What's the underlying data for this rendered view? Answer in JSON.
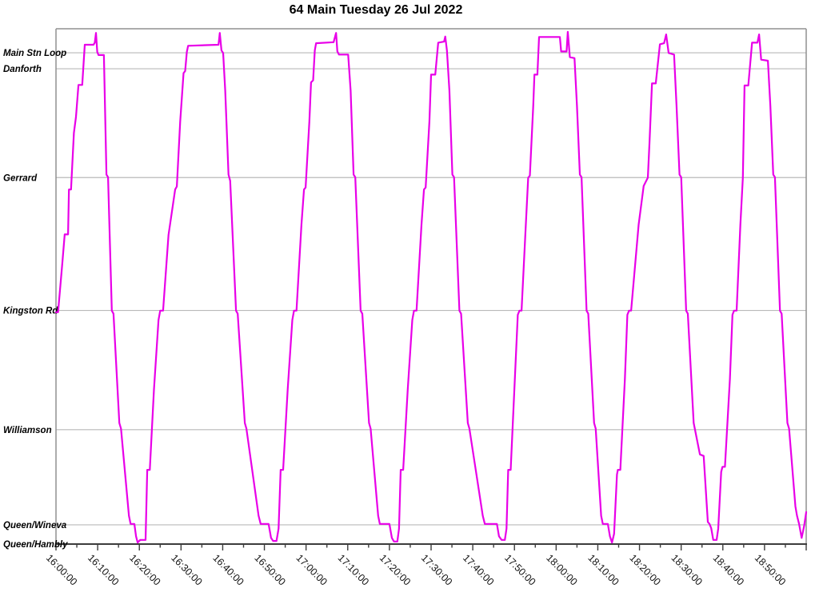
{
  "page": {
    "title": "64 Main Tuesday 26 Jul 2022"
  },
  "chart_data": {
    "type": "line",
    "title": "64 Main Tuesday 26 Jul 2022",
    "description": "Transit time-distance string chart: single vehicle trajectory shuttling along route 64 Main between Queen/Hambly and Main Stn Loop",
    "x_axis": {
      "start_minutes": 0,
      "end_minutes": 180,
      "minor_tick_minutes": 5,
      "major_tick_minutes": 10,
      "tick_labels": [
        "16:00:00",
        "16:10:00",
        "16:20:00",
        "16:30:00",
        "16:40:00",
        "16:50:00",
        "17:00:00",
        "17:10:00",
        "17:20:00",
        "17:30:00",
        "17:40:00",
        "17:50:00",
        "18:00:00",
        "18:10:00",
        "18:20:00",
        "18:30:00",
        "18:40:00",
        "18:50:00"
      ]
    },
    "y_axis": {
      "unit": "normalized route position (0 = Queen/Hambly, 1 = chart top)",
      "grid": true,
      "stops": [
        {
          "label": "Main Stn Loop",
          "pos": 0.9534
        },
        {
          "label": "Danforth",
          "pos": 0.9224
        },
        {
          "label": "Gerrard",
          "pos": 0.7112
        },
        {
          "label": "Kingston Rd",
          "pos": 0.4534
        },
        {
          "label": "Williamson",
          "pos": 0.222
        },
        {
          "label": "Queen/Wineva",
          "pos": 0.0373
        },
        {
          "label": "Queen/Hambly",
          "pos": 0.0
        }
      ]
    },
    "colors": {
      "line": "#E800E8",
      "grid": "#b9b9b9",
      "frame": "#909090",
      "axis": "#3c3c3c",
      "text": "#000000"
    },
    "legend": {
      "visible": false
    },
    "series": [
      {
        "name": "64 Main vehicle trajectory",
        "color": "#E800E8",
        "points": [
          [
            0,
            0.45
          ],
          [
            0.5,
            0.45
          ],
          [
            1.5,
            0.543
          ],
          [
            2.1,
            0.601
          ],
          [
            2.9,
            0.601
          ],
          [
            3.1,
            0.688
          ],
          [
            3.6,
            0.688
          ],
          [
            4.3,
            0.798
          ],
          [
            4.8,
            0.829
          ],
          [
            5.4,
            0.891
          ],
          [
            6.3,
            0.891
          ],
          [
            6.9,
            0.969
          ],
          [
            9.0,
            0.969
          ],
          [
            9.3,
            0.973
          ],
          [
            9.6,
            0.992
          ],
          [
            9.9,
            0.955
          ],
          [
            10.2,
            0.949
          ],
          [
            11.5,
            0.949
          ],
          [
            12.1,
            0.717
          ],
          [
            12.5,
            0.712
          ],
          [
            13.4,
            0.453
          ],
          [
            13.8,
            0.447
          ],
          [
            15.2,
            0.235
          ],
          [
            15.6,
            0.224
          ],
          [
            17.5,
            0.055
          ],
          [
            17.9,
            0.039
          ],
          [
            18.8,
            0.039
          ],
          [
            19.2,
            0.015
          ],
          [
            19.6,
            0.003
          ],
          [
            20.2,
            0.008
          ],
          [
            21.5,
            0.008
          ],
          [
            21.9,
            0.144
          ],
          [
            22.5,
            0.144
          ],
          [
            23.5,
            0.3
          ],
          [
            24.6,
            0.435
          ],
          [
            25.0,
            0.453
          ],
          [
            25.7,
            0.453
          ],
          [
            27.0,
            0.6
          ],
          [
            28.6,
            0.688
          ],
          [
            29.0,
            0.694
          ],
          [
            29.8,
            0.82
          ],
          [
            30.6,
            0.914
          ],
          [
            31.0,
            0.918
          ],
          [
            31.4,
            0.955
          ],
          [
            31.7,
            0.967
          ],
          [
            39.0,
            0.969
          ],
          [
            39.3,
            0.992
          ],
          [
            39.7,
            0.958
          ],
          [
            40.1,
            0.953
          ],
          [
            40.6,
            0.88
          ],
          [
            41.4,
            0.717
          ],
          [
            41.8,
            0.705
          ],
          [
            43.2,
            0.453
          ],
          [
            43.6,
            0.447
          ],
          [
            45.3,
            0.235
          ],
          [
            45.7,
            0.224
          ],
          [
            48.6,
            0.055
          ],
          [
            49.1,
            0.039
          ],
          [
            51.0,
            0.039
          ],
          [
            51.6,
            0.012
          ],
          [
            52.1,
            0.006
          ],
          [
            52.9,
            0.006
          ],
          [
            53.4,
            0.03
          ],
          [
            53.9,
            0.144
          ],
          [
            54.5,
            0.144
          ],
          [
            55.6,
            0.3
          ],
          [
            56.7,
            0.435
          ],
          [
            57.1,
            0.453
          ],
          [
            57.7,
            0.453
          ],
          [
            58.9,
            0.62
          ],
          [
            59.5,
            0.688
          ],
          [
            59.9,
            0.692
          ],
          [
            60.8,
            0.82
          ],
          [
            61.2,
            0.896
          ],
          [
            61.7,
            0.9
          ],
          [
            62.1,
            0.958
          ],
          [
            62.4,
            0.972
          ],
          [
            66.6,
            0.974
          ],
          [
            67.2,
            0.992
          ],
          [
            67.5,
            0.956
          ],
          [
            67.9,
            0.95
          ],
          [
            70.1,
            0.95
          ],
          [
            70.7,
            0.88
          ],
          [
            71.4,
            0.717
          ],
          [
            71.8,
            0.712
          ],
          [
            73.1,
            0.453
          ],
          [
            73.5,
            0.447
          ],
          [
            75.1,
            0.235
          ],
          [
            75.5,
            0.224
          ],
          [
            77.3,
            0.055
          ],
          [
            77.7,
            0.039
          ],
          [
            80.0,
            0.039
          ],
          [
            80.6,
            0.012
          ],
          [
            81.1,
            0.005
          ],
          [
            81.9,
            0.005
          ],
          [
            82.3,
            0.03
          ],
          [
            82.7,
            0.144
          ],
          [
            83.3,
            0.144
          ],
          [
            84.4,
            0.3
          ],
          [
            85.5,
            0.435
          ],
          [
            85.9,
            0.453
          ],
          [
            86.5,
            0.453
          ],
          [
            87.7,
            0.62
          ],
          [
            88.3,
            0.688
          ],
          [
            88.7,
            0.692
          ],
          [
            89.6,
            0.82
          ],
          [
            90.0,
            0.911
          ],
          [
            91.0,
            0.911
          ],
          [
            91.7,
            0.973
          ],
          [
            93.1,
            0.975
          ],
          [
            93.4,
            0.985
          ],
          [
            93.8,
            0.958
          ],
          [
            94.4,
            0.88
          ],
          [
            95.1,
            0.717
          ],
          [
            95.5,
            0.712
          ],
          [
            96.8,
            0.453
          ],
          [
            97.2,
            0.447
          ],
          [
            98.8,
            0.235
          ],
          [
            99.2,
            0.224
          ],
          [
            102.4,
            0.055
          ],
          [
            102.9,
            0.039
          ],
          [
            105.8,
            0.039
          ],
          [
            106.3,
            0.015
          ],
          [
            106.9,
            0.008
          ],
          [
            107.7,
            0.008
          ],
          [
            108.1,
            0.03
          ],
          [
            108.5,
            0.144
          ],
          [
            109.1,
            0.144
          ],
          [
            110.1,
            0.32
          ],
          [
            110.8,
            0.445
          ],
          [
            111.2,
            0.453
          ],
          [
            111.7,
            0.453
          ],
          [
            112.6,
            0.6
          ],
          [
            113.3,
            0.711
          ],
          [
            113.7,
            0.715
          ],
          [
            114.5,
            0.85
          ],
          [
            114.8,
            0.911
          ],
          [
            115.5,
            0.911
          ],
          [
            115.9,
            0.984
          ],
          [
            120.9,
            0.984
          ],
          [
            121.2,
            0.956
          ],
          [
            122.5,
            0.956
          ],
          [
            122.8,
            0.994
          ],
          [
            123.3,
            0.945
          ],
          [
            124.4,
            0.943
          ],
          [
            125.0,
            0.85
          ],
          [
            125.7,
            0.717
          ],
          [
            126.1,
            0.712
          ],
          [
            127.3,
            0.453
          ],
          [
            127.7,
            0.447
          ],
          [
            129.1,
            0.235
          ],
          [
            129.5,
            0.224
          ],
          [
            130.8,
            0.055
          ],
          [
            131.2,
            0.039
          ],
          [
            132.4,
            0.039
          ],
          [
            132.9,
            0.015
          ],
          [
            133.4,
            0.003
          ],
          [
            133.9,
            0.02
          ],
          [
            134.6,
            0.135
          ],
          [
            134.8,
            0.144
          ],
          [
            135.4,
            0.144
          ],
          [
            136.5,
            0.32
          ],
          [
            137.1,
            0.445
          ],
          [
            137.5,
            0.453
          ],
          [
            138.0,
            0.453
          ],
          [
            139.8,
            0.62
          ],
          [
            141.0,
            0.695
          ],
          [
            142.0,
            0.711
          ],
          [
            142.4,
            0.78
          ],
          [
            143.0,
            0.894
          ],
          [
            143.9,
            0.894
          ],
          [
            144.9,
            0.97
          ],
          [
            145.9,
            0.972
          ],
          [
            146.4,
            0.989
          ],
          [
            147.0,
            0.953
          ],
          [
            148.3,
            0.95
          ],
          [
            148.9,
            0.85
          ],
          [
            149.6,
            0.717
          ],
          [
            150.0,
            0.712
          ],
          [
            151.2,
            0.453
          ],
          [
            151.6,
            0.447
          ],
          [
            153.0,
            0.235
          ],
          [
            154.5,
            0.174
          ],
          [
            155.4,
            0.171
          ],
          [
            156.4,
            0.043
          ],
          [
            156.8,
            0.039
          ],
          [
            157.2,
            0.031
          ],
          [
            157.7,
            0.008
          ],
          [
            158.5,
            0.008
          ],
          [
            158.9,
            0.03
          ],
          [
            159.6,
            0.14
          ],
          [
            159.9,
            0.15
          ],
          [
            160.5,
            0.15
          ],
          [
            161.7,
            0.32
          ],
          [
            162.3,
            0.445
          ],
          [
            162.7,
            0.453
          ],
          [
            163.3,
            0.453
          ],
          [
            164.2,
            0.62
          ],
          [
            164.8,
            0.711
          ],
          [
            165.2,
            0.89
          ],
          [
            166.1,
            0.89
          ],
          [
            167.0,
            0.973
          ],
          [
            168.3,
            0.973
          ],
          [
            168.7,
            0.989
          ],
          [
            169.2,
            0.94
          ],
          [
            170.8,
            0.938
          ],
          [
            171.4,
            0.85
          ],
          [
            172.1,
            0.717
          ],
          [
            172.5,
            0.712
          ],
          [
            173.7,
            0.453
          ],
          [
            174.1,
            0.447
          ],
          [
            175.5,
            0.235
          ],
          [
            175.9,
            0.224
          ],
          [
            177.4,
            0.073
          ],
          [
            177.8,
            0.055
          ],
          [
            178.3,
            0.039
          ],
          [
            178.9,
            0.012
          ],
          [
            179.5,
            0.035
          ],
          [
            180,
            0.062
          ]
        ]
      }
    ]
  }
}
